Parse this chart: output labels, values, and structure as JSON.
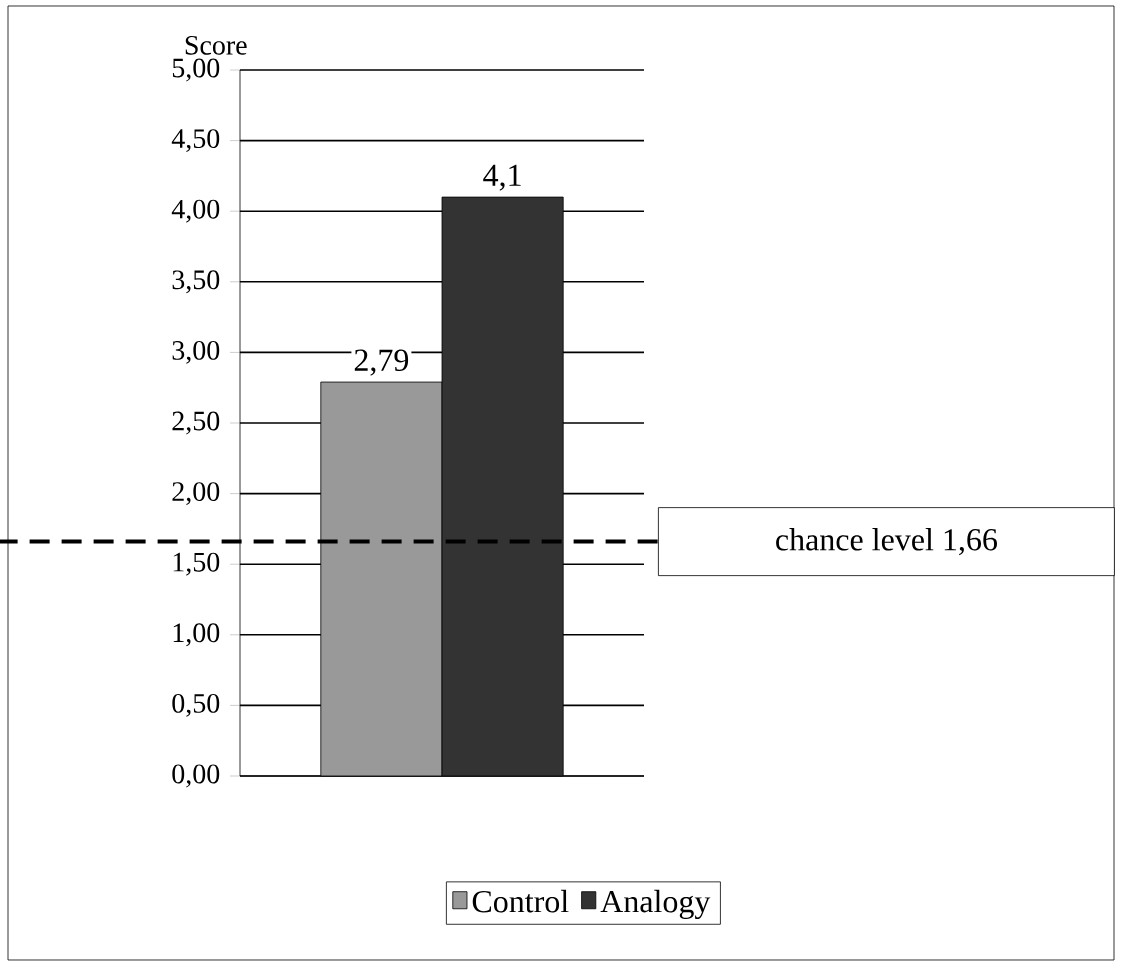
{
  "chart_data": {
    "type": "bar",
    "ylabel": "Score",
    "categories": [
      null
    ],
    "series": [
      {
        "name": "Control",
        "color": "#999999",
        "values": [
          2.79
        ],
        "value_labels": [
          "2,79"
        ]
      },
      {
        "name": "Analogy",
        "color": "#333333",
        "values": [
          4.1
        ],
        "value_labels": [
          "4,1"
        ]
      }
    ],
    "ylim": [
      0,
      5
    ],
    "yticks": [
      {
        "value": 0,
        "label": "0,00"
      },
      {
        "value": 0.5,
        "label": "0,50"
      },
      {
        "value": 1,
        "label": "1,00"
      },
      {
        "value": 1.5,
        "label": "1,50"
      },
      {
        "value": 2,
        "label": "2,00"
      },
      {
        "value": 2.5,
        "label": "2,50"
      },
      {
        "value": 3,
        "label": "3,00"
      },
      {
        "value": 3.5,
        "label": "3,50"
      },
      {
        "value": 4,
        "label": "4,00"
      },
      {
        "value": 4.5,
        "label": "4,50"
      },
      {
        "value": 5,
        "label": "5,00"
      }
    ],
    "ref_lines": [
      {
        "axis": "y",
        "value": 1.66,
        "label": "chance level 1,66",
        "line_style": "dashed",
        "color": "#000000"
      }
    ],
    "grid": "y",
    "legend": "bottom"
  }
}
